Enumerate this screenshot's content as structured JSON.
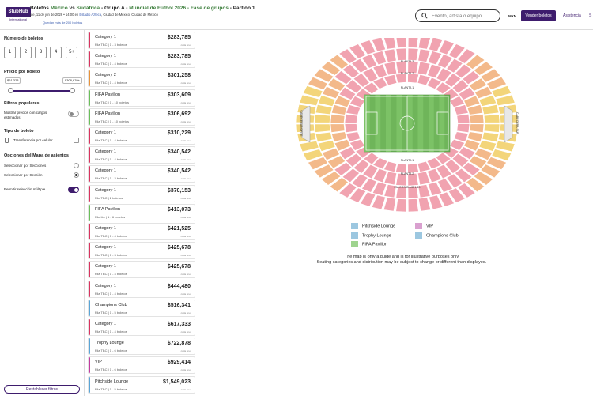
{
  "header": {
    "logo_top": "StubHub",
    "logo_bottom": "International",
    "title_prefix": "Boletos ",
    "team1": "México",
    "vs": " vs ",
    "team2": "Sudáfrica",
    "group": " - Grupo A - ",
    "tournament": "Mundial de Fútbol 2026 - Fase de grupos",
    "match": " - Partido 1",
    "date": "jue, 11 de jun de 2026 • 14:00 en ",
    "venue": "Estadio Azteca",
    "city": ", Ciudad de México, Ciudad de México",
    "remaining": "Quedan más de 200 boletos",
    "search_placeholder": "Evento, artista o equipo",
    "currency": "MXN",
    "sell_label": "Vender boletos",
    "help_label": "Asistencia",
    "user_initial": "S"
  },
  "filters": {
    "qty_title": "Número de boletos",
    "qty_options": [
      "1",
      "2",
      "3",
      "4",
      "5+"
    ],
    "price_title": "Precio por boleto",
    "price_min": "$61,323",
    "price_max": "$308,670+",
    "popular_title": "Filtros populares",
    "popular_fees_label": "Mostrar precios con cargos estimados",
    "ticket_type_title": "Tipo de boleto",
    "mobile_transfer": "Transferencia por celular",
    "seat_map_title": "Opciones del Mapa de asientos",
    "select_by_sections": "Seleccionar por Secciones",
    "select_by_section": "Seleccionar por Sección",
    "multi_select": "Permitir selección múltiple",
    "reset_label": "Restablecer filtros"
  },
  "listings": [
    {
      "name": "Category 1",
      "meta": "Fila TBC | 1 - 3 boletos",
      "price": "$283,785",
      "fee": "cada uno",
      "color": "#d9335f"
    },
    {
      "name": "Category 1",
      "meta": "Fila TBC | 1 - 4 boletos",
      "price": "$283,785",
      "fee": "cada uno",
      "color": "#d9335f"
    },
    {
      "name": "Category 2",
      "meta": "Fila TBC | 1 - 4 boletos",
      "price": "$301,258",
      "fee": "cada uno",
      "color": "#e8923a"
    },
    {
      "name": "FIFA Pavilion",
      "meta": "Fila TBC | 1 - 10 boletos",
      "price": "$303,609",
      "fee": "cada uno",
      "color": "#6abf5a"
    },
    {
      "name": "FIFA Pavilion",
      "meta": "Fila TBC | 1 - 10 boletos",
      "price": "$306,692",
      "fee": "cada uno",
      "color": "#6abf5a"
    },
    {
      "name": "Category 1",
      "meta": "Fila TBC | 1 - 4 boletos",
      "price": "$310,229",
      "fee": "cada uno",
      "color": "#d9335f"
    },
    {
      "name": "Category 1",
      "meta": "Fila TBC | 1 - 4 boletos",
      "price": "$340,542",
      "fee": "cada uno",
      "color": "#d9335f"
    },
    {
      "name": "Category 1",
      "meta": "Fila TBC | 1 - 3 boletos",
      "price": "$340,542",
      "fee": "cada uno",
      "color": "#d9335f"
    },
    {
      "name": "Category 1",
      "meta": "Fila TBC | 2 boletos",
      "price": "$370,153",
      "fee": "cada uno",
      "color": "#d9335f"
    },
    {
      "name": "FIFA Pavilion",
      "meta": "Fila tbc | 1 - 6 boletos",
      "price": "$413,073",
      "fee": "cada uno",
      "color": "#6abf5a"
    },
    {
      "name": "Category 1",
      "meta": "Fila TBC | 1 - 4 boletos",
      "price": "$421,525",
      "fee": "cada uno",
      "color": "#d9335f"
    },
    {
      "name": "Category 1",
      "meta": "Fila TBC | 1 - 3 boletos",
      "price": "$425,678",
      "fee": "cada uno",
      "color": "#d9335f"
    },
    {
      "name": "Category 1",
      "meta": "Fila TBC | 1 - 4 boletos",
      "price": "$425,678",
      "fee": "cada uno",
      "color": "#d9335f"
    },
    {
      "name": "Category 1",
      "meta": "Fila TBC | 1 - 4 boletos",
      "price": "$444,480",
      "fee": "cada uno",
      "color": "#d9335f"
    },
    {
      "name": "Champions Club",
      "meta": "Fila TBC | 1 - 5 boletos",
      "price": "$516,341",
      "fee": "cada uno",
      "color": "#5aa5d6"
    },
    {
      "name": "Category 1",
      "meta": "Fila TBC | 1 - 4 boletos",
      "price": "$617,333",
      "fee": "cada uno",
      "color": "#d9335f"
    },
    {
      "name": "Trophy Lounge",
      "meta": "Fila TBC | 1 - 6 boletos",
      "price": "$722,878",
      "fee": "cada uno",
      "color": "#5aa5d6"
    },
    {
      "name": "VIP",
      "meta": "Fila TBC | 1 - 6 boletos",
      "price": "$929,414",
      "fee": "cada uno",
      "color": "#c23b9f"
    },
    {
      "name": "Pitchside Lounge",
      "meta": "Fila TBC | 1 - 5 boletos",
      "price": "$1,549,023",
      "fee": "cada uno",
      "color": "#5aa5d6"
    }
  ],
  "map": {
    "labels": {
      "cabecera_norte": "CABECERA NORTE",
      "cabecera_sur": "CABECERA SUR",
      "planta1_top": "PLANTA 1",
      "planta1_bottom": "PLANTA 1",
      "planta2_top": "PLANTA 2",
      "planta2_bottom": "PLANTA 2",
      "planta3": "PLANTA 3",
      "palcos": "PALCOS CLUB 1-10"
    },
    "legend": [
      {
        "label": "Pitchside Lounge",
        "color": "#9cc7e0"
      },
      {
        "label": "VIP",
        "color": "#d9a0cf"
      },
      {
        "label": "Trophy Lounge",
        "color": "#9cc7e0"
      },
      {
        "label": "Champions Club",
        "color": "#9cc7e0"
      },
      {
        "label": "FIFA Pavilion",
        "color": "#9fd48f"
      }
    ],
    "note_line1": "The map is only a guide and is for illustrative purposes only",
    "note_line2": "Seating categories and distribution may be subject to change or different than displayed."
  },
  "colors": {
    "brand": "#3e1c6d",
    "category1": "#f1a3b0",
    "category2": "#f3b98a",
    "category3": "#f3d57a",
    "pitch": "#6fb55a"
  }
}
